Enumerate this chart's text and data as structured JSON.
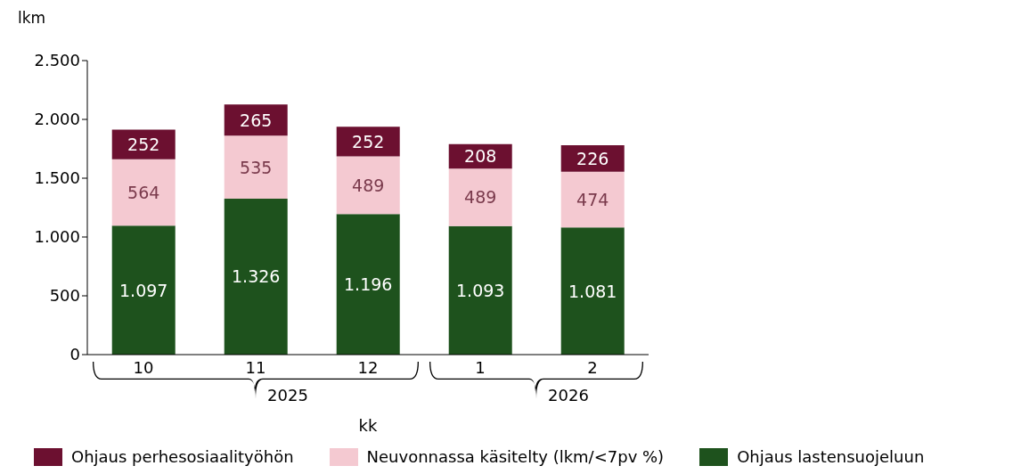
{
  "chart_data": {
    "type": "bar",
    "stacked": true,
    "ylabel": "lkm",
    "xlabel": "kk",
    "categories": [
      "10",
      "11",
      "12",
      "1",
      "2"
    ],
    "series": [
      {
        "name": "Ohjaus lastensuojeluun",
        "color": "#1e521d",
        "values": [
          1097,
          1326,
          1196,
          1093,
          1081
        ],
        "value_labels": [
          "1.097",
          "1.326",
          "1.196",
          "1.093",
          "1.081"
        ]
      },
      {
        "name": "Neuvonnassa käsitelty (lkm/<7pv %)",
        "color": "#f4c9d1",
        "values": [
          564,
          535,
          489,
          489,
          474
        ],
        "value_labels": [
          "564",
          "535",
          "489",
          "489",
          "474"
        ]
      },
      {
        "name": "Ohjaus perhesosiaalityöhön",
        "color": "#6c1030",
        "values": [
          252,
          265,
          252,
          208,
          226
        ],
        "value_labels": [
          "252",
          "265",
          "252",
          "208",
          "226"
        ]
      }
    ],
    "ylim": [
      0,
      2500
    ],
    "yticks": [
      0,
      500,
      {
        "value": 1000,
        "label": "1.000"
      },
      {
        "value": 1500,
        "label": "1.500"
      },
      {
        "value": 2000,
        "label": "2.000"
      },
      {
        "value": 2500,
        "label": "2.500"
      }
    ],
    "grid": false,
    "legend": "bottom",
    "annotations": [
      "2025",
      "2026"
    ]
  }
}
